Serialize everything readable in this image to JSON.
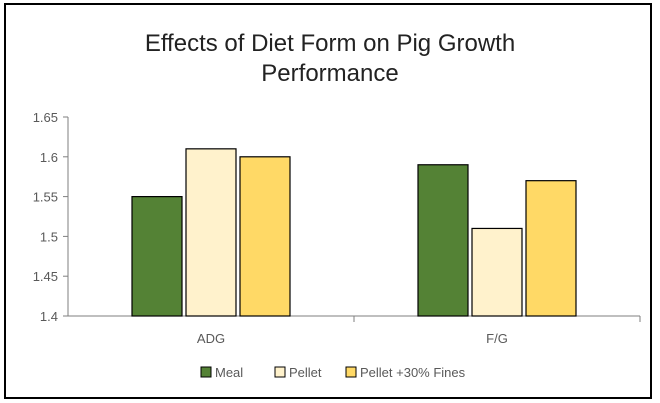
{
  "chart_data": {
    "type": "bar",
    "title_line1": "Effects of Diet Form on Pig Growth",
    "title_line2": "Performance",
    "categories": [
      "ADG",
      "F/G"
    ],
    "ylim": [
      1.4,
      1.65
    ],
    "y_ticks": [
      "1.4",
      "1.45",
      "1.5",
      "1.55",
      "1.6",
      "1.65"
    ],
    "series": [
      {
        "name": "Meal",
        "values": [
          1.55,
          1.59
        ],
        "color": "#548235"
      },
      {
        "name": "Pellet",
        "values": [
          1.61,
          1.51
        ],
        "color": "#FFF2CC"
      },
      {
        "name": "Pellet +30% Fines",
        "values": [
          1.6,
          1.57
        ],
        "color": "#FFD966"
      }
    ],
    "legend_position": "bottom",
    "grid": false
  }
}
